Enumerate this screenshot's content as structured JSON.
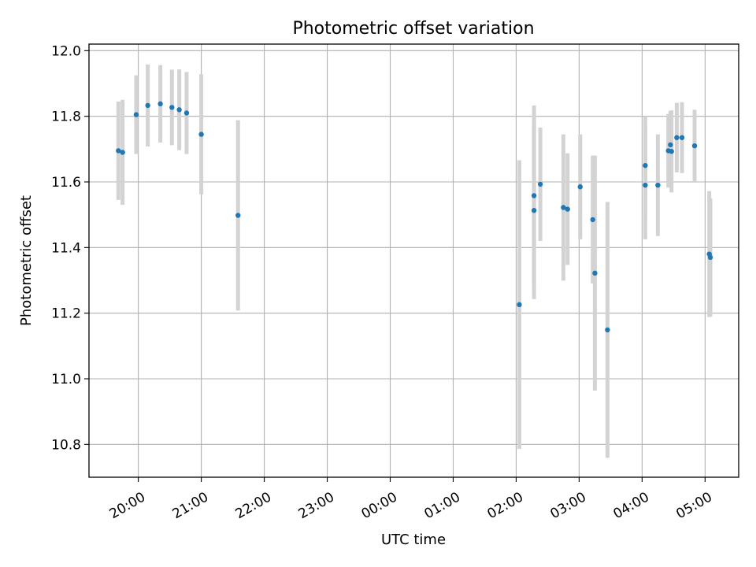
{
  "chart_data": {
    "type": "scatter",
    "title": "Photometric offset variation",
    "xlabel": "UTC time",
    "ylabel": "Photometric offset",
    "x_is_time": true,
    "xlim": [
      "19:13",
      "05:32"
    ],
    "ylim": [
      10.7,
      12.02
    ],
    "x_ticks": [
      "20:00",
      "21:00",
      "22:00",
      "23:00",
      "00:00",
      "01:00",
      "02:00",
      "03:00",
      "04:00",
      "05:00"
    ],
    "y_ticks": [
      10.8,
      11.0,
      11.2,
      11.4,
      11.6,
      11.8,
      12.0
    ],
    "grid": true,
    "marker_color": "#1f77b4",
    "errorbar_color": "#d3d3d3",
    "points": [
      {
        "x": "19:41",
        "y": 11.695,
        "err": 0.15
      },
      {
        "x": "19:45",
        "y": 11.69,
        "err": 0.16
      },
      {
        "x": "19:58",
        "y": 11.805,
        "err": 0.12
      },
      {
        "x": "20:09",
        "y": 11.833,
        "err": 0.125
      },
      {
        "x": "20:21",
        "y": 11.838,
        "err": 0.118
      },
      {
        "x": "20:32",
        "y": 11.827,
        "err": 0.115
      },
      {
        "x": "20:39",
        "y": 11.82,
        "err": 0.123
      },
      {
        "x": "20:46",
        "y": 11.81,
        "err": 0.125
      },
      {
        "x": "21:00",
        "y": 11.745,
        "err": 0.183
      },
      {
        "x": "21:35",
        "y": 11.498,
        "err": 0.29
      },
      {
        "x": "02:03",
        "y": 11.226,
        "err": 0.44
      },
      {
        "x": "02:17",
        "y": 11.558,
        "err": 0.275
      },
      {
        "x": "02:17",
        "y": 11.513,
        "err": 0.27
      },
      {
        "x": "02:23",
        "y": 11.593,
        "err": 0.173
      },
      {
        "x": "02:45",
        "y": 11.522,
        "err": 0.223
      },
      {
        "x": "02:49",
        "y": 11.517,
        "err": 0.17
      },
      {
        "x": "03:01",
        "y": 11.585,
        "err": 0.16
      },
      {
        "x": "03:13",
        "y": 11.485,
        "err": 0.195
      },
      {
        "x": "03:15",
        "y": 11.322,
        "err": 0.358
      },
      {
        "x": "03:27",
        "y": 11.149,
        "err": 0.39
      },
      {
        "x": "04:03",
        "y": 11.65,
        "err": 0.15
      },
      {
        "x": "04:03",
        "y": 11.59,
        "err": 0.165
      },
      {
        "x": "04:15",
        "y": 11.59,
        "err": 0.155
      },
      {
        "x": "04:25",
        "y": 11.695,
        "err": 0.112
      },
      {
        "x": "04:27",
        "y": 11.713,
        "err": 0.103
      },
      {
        "x": "04:28",
        "y": 11.693,
        "err": 0.125
      },
      {
        "x": "04:33",
        "y": 11.735,
        "err": 0.106
      },
      {
        "x": "04:38",
        "y": 11.735,
        "err": 0.108
      },
      {
        "x": "04:50",
        "y": 11.71,
        "err": 0.11
      },
      {
        "x": "05:04",
        "y": 11.38,
        "err": 0.192
      },
      {
        "x": "05:05",
        "y": 11.37,
        "err": 0.18
      }
    ]
  }
}
